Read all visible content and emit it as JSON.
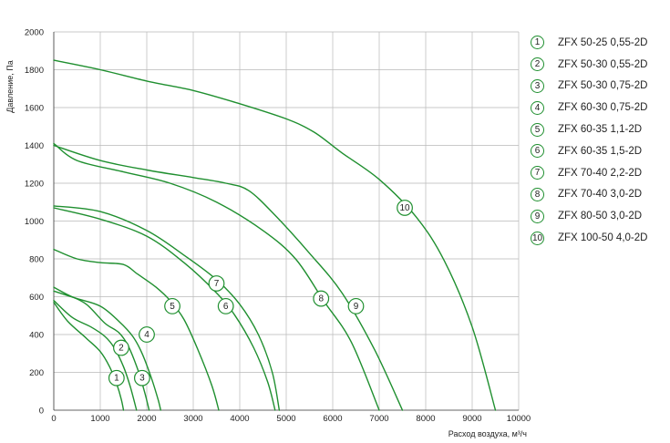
{
  "colors": {
    "curve": "#1f8f2f",
    "grid": "#b9b9b9",
    "text": "#222222"
  },
  "chart_data": {
    "type": "line",
    "title": "",
    "xlabel": "Расход воздуха, м³/ч",
    "ylabel": "Давление, Па",
    "xlim": [
      0,
      10000
    ],
    "ylim": [
      0,
      2000
    ],
    "x_ticks": [
      "0",
      "1000",
      "2000",
      "3000",
      "4000",
      "5000",
      "6000",
      "7000",
      "8000",
      "9000",
      "10000"
    ],
    "y_ticks": [
      "0",
      "200",
      "400",
      "600",
      "800",
      "1000",
      "1200",
      "1400",
      "1600",
      "1800",
      "2000"
    ],
    "grid": true,
    "legend": "right",
    "series": [
      {
        "name": "ZFX 50-25 0,55-2D",
        "label": "1",
        "label_at": [
          1350,
          170
        ],
        "points": [
          [
            0,
            570
          ],
          [
            300,
            470
          ],
          [
            700,
            380
          ],
          [
            1000,
            310
          ],
          [
            1200,
            230
          ],
          [
            1350,
            140
          ],
          [
            1450,
            60
          ],
          [
            1500,
            0
          ]
        ]
      },
      {
        "name": "ZFX 50-30 0,55-2D",
        "label": "2",
        "label_at": [
          1450,
          330
        ],
        "points": [
          [
            0,
            580
          ],
          [
            400,
            490
          ],
          [
            800,
            440
          ],
          [
            1100,
            390
          ],
          [
            1300,
            330
          ],
          [
            1500,
            230
          ],
          [
            1650,
            120
          ],
          [
            1780,
            0
          ]
        ]
      },
      {
        "name": "ZFX 50-30 0,75-2D",
        "label": "3",
        "label_at": [
          1900,
          170
        ],
        "points": [
          [
            0,
            650
          ],
          [
            300,
            610
          ],
          [
            700,
            560
          ],
          [
            1100,
            460
          ],
          [
            1400,
            410
          ],
          [
            1600,
            340
          ],
          [
            1800,
            220
          ],
          [
            1950,
            100
          ],
          [
            2050,
            0
          ]
        ]
      },
      {
        "name": "ZFX 60-30 0,75-2D",
        "label": "4",
        "label_at": [
          2000,
          400
        ],
        "points": [
          [
            0,
            630
          ],
          [
            500,
            590
          ],
          [
            1000,
            550
          ],
          [
            1400,
            470
          ],
          [
            1700,
            390
          ],
          [
            1900,
            300
          ],
          [
            2100,
            170
          ],
          [
            2250,
            50
          ],
          [
            2300,
            0
          ]
        ]
      },
      {
        "name": "ZFX 60-35 1,1-2D",
        "label": "5",
        "label_at": [
          2550,
          550
        ],
        "points": [
          [
            0,
            850
          ],
          [
            500,
            800
          ],
          [
            1000,
            780
          ],
          [
            1500,
            770
          ],
          [
            1800,
            720
          ],
          [
            2200,
            650
          ],
          [
            2500,
            580
          ],
          [
            2800,
            480
          ],
          [
            3100,
            320
          ],
          [
            3400,
            130
          ],
          [
            3550,
            0
          ]
        ]
      },
      {
        "name": "ZFX 60-35 1,5-2D",
        "label": "6",
        "label_at": [
          3700,
          550
        ],
        "points": [
          [
            0,
            1070
          ],
          [
            1000,
            1010
          ],
          [
            2000,
            920
          ],
          [
            2800,
            780
          ],
          [
            3500,
            620
          ],
          [
            3900,
            500
          ],
          [
            4300,
            330
          ],
          [
            4600,
            150
          ],
          [
            4760,
            0
          ]
        ]
      },
      {
        "name": "ZFX 70-40 2,2-2D",
        "label": "7",
        "label_at": [
          3500,
          670
        ],
        "points": [
          [
            0,
            1080
          ],
          [
            1000,
            1050
          ],
          [
            2000,
            950
          ],
          [
            2800,
            820
          ],
          [
            3500,
            690
          ],
          [
            4000,
            560
          ],
          [
            4400,
            400
          ],
          [
            4700,
            200
          ],
          [
            4850,
            0
          ]
        ]
      },
      {
        "name": "ZFX 70-40 3,0-2D",
        "label": "8",
        "label_at": [
          5750,
          590
        ],
        "points": [
          [
            0,
            1410
          ],
          [
            500,
            1320
          ],
          [
            1500,
            1260
          ],
          [
            2500,
            1200
          ],
          [
            3500,
            1100
          ],
          [
            4500,
            950
          ],
          [
            5200,
            800
          ],
          [
            5800,
            580
          ],
          [
            6400,
            360
          ],
          [
            7000,
            0
          ]
        ]
      },
      {
        "name": "ZFX 80-50 3,0-2D",
        "label": "9",
        "label_at": [
          6500,
          550
        ],
        "points": [
          [
            0,
            1400
          ],
          [
            1000,
            1320
          ],
          [
            2000,
            1270
          ],
          [
            3000,
            1230
          ],
          [
            3700,
            1200
          ],
          [
            4200,
            1160
          ],
          [
            4800,
            1020
          ],
          [
            5500,
            830
          ],
          [
            6200,
            620
          ],
          [
            6900,
            320
          ],
          [
            7500,
            0
          ]
        ]
      },
      {
        "name": "ZFX 100-50 4,0-2D",
        "label": "10",
        "label_at": [
          7550,
          1070
        ],
        "points": [
          [
            0,
            1850
          ],
          [
            1000,
            1800
          ],
          [
            2000,
            1740
          ],
          [
            3000,
            1690
          ],
          [
            4000,
            1620
          ],
          [
            5000,
            1540
          ],
          [
            5600,
            1470
          ],
          [
            6200,
            1360
          ],
          [
            7000,
            1220
          ],
          [
            7800,
            1020
          ],
          [
            8400,
            790
          ],
          [
            9000,
            440
          ],
          [
            9500,
            0
          ]
        ]
      }
    ]
  }
}
